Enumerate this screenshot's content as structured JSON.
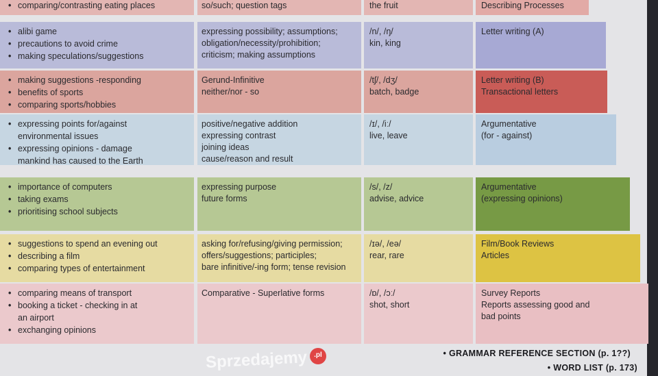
{
  "rows": [
    {
      "skills": [
        "comparing/contrasting eating places"
      ],
      "grammar": [
        "so/such; question tags"
      ],
      "pron": [
        "the fruit"
      ],
      "writing": [
        "Describing Processes"
      ],
      "colors": {
        "main": "#e3b6b3",
        "writing": "#e2aaa6"
      }
    },
    {
      "skills": [
        "alibi game",
        "precautions to avoid crime",
        "making speculations/suggestions"
      ],
      "grammar": [
        "expressing possibility; assumptions;",
        "obligation/necessity/prohibition;",
        "criticism; making assumptions"
      ],
      "pron": [
        "/n/, /ŋ/",
        "kin, king"
      ],
      "writing": [
        "Letter writing (A)"
      ],
      "colors": {
        "main": "#b9bbd9",
        "writing": "#a7a9d4"
      }
    },
    {
      "skills": [
        "making suggestions -responding",
        "benefits of sports",
        "comparing sports/hobbies"
      ],
      "grammar": [
        "Gerund-Infinitive",
        "neither/nor - so"
      ],
      "pron": [
        "/tʃ/, /dʒ/",
        "batch, badge"
      ],
      "writing": [
        "Letter writing (B)",
        "Transactional letters"
      ],
      "colors": {
        "main": "#dba59e",
        "writing": "#c95c57"
      }
    },
    {
      "skills": [
        "expressing points for/against",
        "environmental issues",
        "expressing opinions - damage",
        "mankind has caused to the Earth"
      ],
      "grammar": [
        "positive/negative addition",
        "expressing contrast",
        "joining ideas",
        "cause/reason and result"
      ],
      "pron": [
        "/ɪ/, /iː/",
        "live, leave"
      ],
      "writing": [
        "Argumentative",
        "(for - against)"
      ],
      "colors": {
        "main": "#c6d6e2",
        "writing": "#b9cde0"
      }
    },
    {
      "skills": [
        "importance of computers",
        "taking exams",
        "prioritising school subjects"
      ],
      "grammar": [
        "expressing purpose",
        "future forms"
      ],
      "pron": [
        "/s/, /z/",
        "advise, advice"
      ],
      "writing": [
        "Argumentative",
        "(expressing opinions)"
      ],
      "colors": {
        "main": "#b6c894",
        "writing": "#779a45"
      }
    },
    {
      "skills": [
        "suggestions to spend an evening out",
        "describing a film",
        "comparing types of entertainment"
      ],
      "grammar": [
        "asking for/refusing/giving permission;",
        "offers/suggestions; participles;",
        "bare infinitive/-ing form; tense revision"
      ],
      "pron": [
        "/ɪə/, /eə/",
        "rear, rare"
      ],
      "writing": [
        "Film/Book Reviews",
        "Articles"
      ],
      "colors": {
        "main": "#e6dba2",
        "writing": "#ddc343"
      }
    },
    {
      "skills": [
        "comparing means of transport",
        "booking a ticket - checking in at",
        "an airport",
        "exchanging opinions"
      ],
      "grammar": [
        "Comparative - Superlative forms"
      ],
      "pron": [
        "/ɒ/, /ɔː/",
        "shot, short"
      ],
      "writing": [
        "Survey Reports",
        "Reports assessing  good and",
        "bad points"
      ],
      "colors": {
        "main": "#ebc9cc",
        "writing": "#e9bfc3"
      }
    }
  ],
  "footer": {
    "grammar_reference": "GRAMMAR REFERENCE SECTION (p. 1??)",
    "word_list": "WORD LIST (p. 173)"
  },
  "watermark": {
    "text": "Sprzedajemy",
    "badge": ".pl"
  }
}
